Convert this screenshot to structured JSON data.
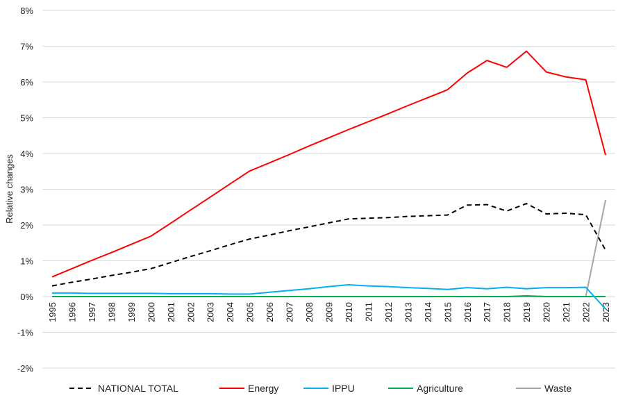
{
  "chart_data": {
    "type": "line",
    "title": "",
    "xlabel": "",
    "ylabel": "Relative changes",
    "ylim": [
      -2,
      8
    ],
    "yticks": [
      -2,
      -1,
      0,
      1,
      2,
      3,
      4,
      5,
      6,
      7,
      8
    ],
    "ytick_format": "%",
    "grid": true,
    "legend_position": "bottom",
    "x": [
      1995,
      1996,
      1997,
      1998,
      1999,
      2000,
      2001,
      2002,
      2003,
      2004,
      2005,
      2006,
      2007,
      2008,
      2009,
      2010,
      2011,
      2012,
      2013,
      2014,
      2015,
      2016,
      2017,
      2018,
      2019,
      2020,
      2021,
      2022,
      2023
    ],
    "series": [
      {
        "name": "NATIONAL TOTAL",
        "color": "#000000",
        "dashed": true,
        "values": [
          0.3,
          0.4,
          0.49,
          0.59,
          0.68,
          0.78,
          0.95,
          1.12,
          1.28,
          1.45,
          1.61,
          1.72,
          1.84,
          1.95,
          2.06,
          2.17,
          2.19,
          2.21,
          2.24,
          2.26,
          2.28,
          2.56,
          2.57,
          2.39,
          2.6,
          2.31,
          2.33,
          2.29,
          1.3
        ]
      },
      {
        "name": "Energy",
        "color": "#ff0000",
        "dashed": false,
        "values": [
          0.55,
          0.78,
          1.01,
          1.23,
          1.46,
          1.69,
          2.05,
          2.42,
          2.78,
          3.15,
          3.51,
          3.74,
          3.97,
          4.21,
          4.44,
          4.67,
          4.89,
          5.11,
          5.34,
          5.56,
          5.78,
          6.25,
          6.6,
          6.41,
          6.86,
          6.28,
          6.14,
          6.06,
          3.96
        ]
      },
      {
        "name": "IPPU",
        "color": "#00b0f0",
        "dashed": false,
        "values": [
          0.1,
          0.1,
          0.09,
          0.09,
          0.09,
          0.09,
          0.08,
          0.08,
          0.08,
          0.07,
          0.07,
          0.12,
          0.17,
          0.22,
          0.28,
          0.33,
          0.3,
          0.28,
          0.25,
          0.23,
          0.2,
          0.25,
          0.22,
          0.26,
          0.22,
          0.25,
          0.25,
          0.26,
          -0.35
        ]
      },
      {
        "name": "Agriculture",
        "color": "#00b050",
        "dashed": false,
        "values": [
          0,
          0,
          0,
          0,
          0,
          0,
          0,
          0,
          0,
          0,
          0,
          0,
          0,
          0,
          0,
          0,
          0,
          0,
          0,
          0,
          0,
          0,
          0,
          0,
          0.02,
          0,
          0,
          0,
          0
        ]
      },
      {
        "name": "Waste",
        "color": "#a6a6a6",
        "dashed": false,
        "values": [
          0,
          0,
          0,
          0,
          0,
          0,
          0,
          0,
          0,
          0,
          0,
          0,
          0,
          0,
          0,
          0,
          0,
          0,
          0,
          0,
          0,
          0,
          0,
          0,
          0,
          0,
          0,
          0,
          2.7
        ]
      }
    ]
  }
}
